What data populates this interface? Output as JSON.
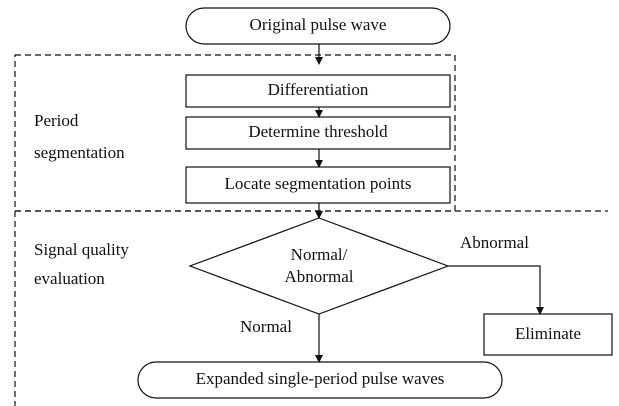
{
  "nodes": [
    {
      "label": "Original pulse wave"
    },
    {
      "label": "Differentiation"
    },
    {
      "label": "Determine threshold"
    },
    {
      "label": "Locate segmentation points"
    },
    {
      "label": "Normal/\nAbnormal"
    },
    {
      "label": "Eliminate"
    },
    {
      "label": "Expanded single-period pulse waves"
    }
  ],
  "groups": [
    {
      "label": "Period\nsegmentation"
    },
    {
      "label": "Signal quality\nevaluation"
    }
  ],
  "edges": [
    {
      "label": "Abnormal"
    },
    {
      "label": "Normal"
    }
  ]
}
